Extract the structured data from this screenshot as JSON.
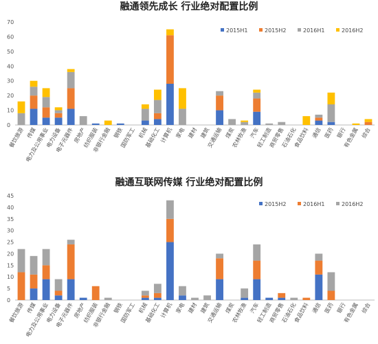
{
  "chart_data": [
    {
      "type": "bar",
      "stacked": true,
      "title": "融通领先成长 行业绝对配置比例",
      "categories": [
        "餐饮旅游",
        "传媒",
        "电力及公用事业",
        "电力设备",
        "电子元器件",
        "房地产",
        "纺织服装",
        "非银行金融",
        "钢铁",
        "国防军工",
        "机械",
        "基础化工",
        "计算机",
        "家电",
        "建材",
        "建筑",
        "交通运输",
        "煤炭",
        "农林牧渔",
        "汽车",
        "轻工制造",
        "商贸零售",
        "石油石化",
        "食品饮料",
        "通信",
        "医药",
        "银行",
        "有色金属",
        "综合"
      ],
      "series": [
        {
          "name": "2015H1",
          "color": "#4472c4",
          "values": [
            0,
            11,
            5,
            5,
            11,
            0,
            1,
            0,
            1,
            0,
            3,
            4,
            28,
            0,
            0,
            0,
            10,
            0,
            0,
            9,
            0,
            0,
            0,
            0,
            3,
            2,
            0,
            0,
            0
          ]
        },
        {
          "name": "2015H2",
          "color": "#ed7d31",
          "values": [
            0,
            9,
            7,
            3,
            14,
            0,
            0,
            0,
            0,
            0,
            0,
            4,
            33,
            0,
            0,
            0,
            10,
            0,
            0,
            9,
            0,
            0,
            0,
            0,
            2,
            0,
            0,
            0,
            2
          ]
        },
        {
          "name": "2016H1",
          "color": "#a5a5a5",
          "values": [
            8,
            6,
            7,
            2,
            11,
            6,
            0,
            0,
            0,
            0,
            8,
            9,
            0,
            11,
            0,
            0,
            3,
            4,
            2,
            4,
            1,
            2,
            0,
            0,
            2,
            12,
            0,
            0,
            0
          ]
        },
        {
          "name": "2016H2",
          "color": "#ffc000",
          "values": [
            8,
            4,
            6,
            2,
            2,
            0,
            0,
            3,
            0,
            0,
            3,
            7,
            4,
            14,
            0,
            0,
            0,
            0,
            1,
            2,
            0,
            0,
            0,
            6,
            0,
            8,
            0,
            1,
            2
          ]
        }
      ],
      "ylim": [
        0,
        70
      ],
      "yticks": [
        0,
        10,
        20,
        30,
        40,
        50,
        60,
        70
      ],
      "grid": false,
      "legend": "top-right"
    },
    {
      "type": "bar",
      "stacked": true,
      "title": "融通互联网传媒 行业绝对配置比例",
      "categories": [
        "餐饮旅游",
        "传媒",
        "电力及公用事业",
        "电力设备",
        "电子元器件",
        "房地产",
        "纺织服装",
        "非银行金融",
        "钢铁",
        "国防军工",
        "机械",
        "基础化工",
        "计算机",
        "家电",
        "建材",
        "建筑",
        "交通运输",
        "煤炭",
        "农林牧渔",
        "汽车",
        "轻工制造",
        "商贸零售",
        "石油石化",
        "食品饮料",
        "通信",
        "医药",
        "银行",
        "有色金属",
        "综合"
      ],
      "series": [
        {
          "name": "2015H2",
          "color": "#4472c4",
          "values": [
            0,
            5,
            9,
            2,
            9,
            1,
            0,
            0,
            0,
            0,
            1,
            1,
            25,
            2,
            0,
            0,
            9,
            0,
            1,
            9,
            1,
            1,
            0,
            0,
            11,
            0,
            0,
            0,
            0
          ]
        },
        {
          "name": "2016H1",
          "color": "#ed7d31",
          "values": [
            12,
            6,
            6,
            2,
            15,
            0,
            6,
            0,
            0,
            0,
            1,
            2,
            10,
            0,
            0,
            0,
            9,
            0,
            0,
            8,
            0,
            2,
            0,
            1,
            6,
            4,
            0,
            0,
            0
          ]
        },
        {
          "name": "2016H2",
          "color": "#a5a5a5",
          "values": [
            10,
            8,
            7,
            5,
            2,
            0,
            0,
            1,
            0,
            0,
            2,
            4,
            8,
            4,
            1,
            2,
            2,
            0,
            4,
            7,
            0,
            0,
            1,
            0,
            3,
            8,
            0,
            0,
            0
          ]
        }
      ],
      "ylim": [
        0,
        45
      ],
      "yticks": [
        0,
        5,
        10,
        15,
        20,
        25,
        30,
        35,
        40,
        45
      ],
      "grid": false,
      "legend": "top-right"
    }
  ]
}
